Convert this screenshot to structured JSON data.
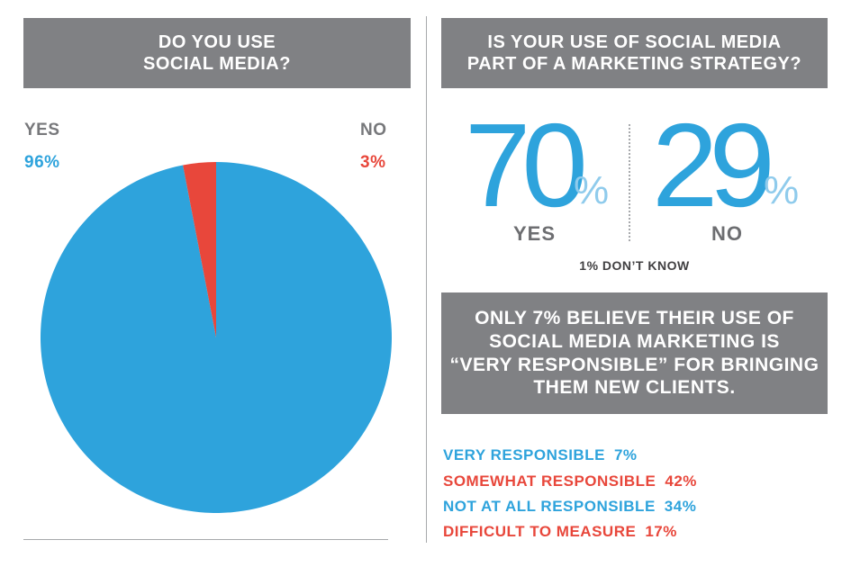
{
  "colors": {
    "yes": "#2ea3dc",
    "no": "#e8473b",
    "banner": "#808184",
    "light_blue": "#8fcbec"
  },
  "left_panel": {
    "question_lines": [
      "DO YOU USE",
      "SOCIAL MEDIA?"
    ],
    "yes_label": "YES",
    "yes_value": "96%",
    "no_label": "NO",
    "no_value": "3%"
  },
  "right_panel": {
    "question_lines": [
      "IS YOUR USE OF SOCIAL MEDIA",
      "PART OF A MARKETING STRATEGY?"
    ],
    "yes_number": "70",
    "no_number": "29",
    "percent_sign": "%",
    "yes_label": "YES",
    "no_label": "NO",
    "dont_know": "1% DON’T KNOW",
    "note_lines": [
      "ONLY 7% BELIEVE THEIR USE OF",
      "SOCIAL MEDIA MARKETING IS",
      "“VERY RESPONSIBLE” FOR BRINGING",
      "THEM NEW CLIENTS."
    ],
    "responsibility": [
      {
        "label": "VERY RESPONSIBLE",
        "value": "7%"
      },
      {
        "label": "SOMEWHAT RESPONSIBLE",
        "value": "42%"
      },
      {
        "label": "NOT AT ALL RESPONSIBLE",
        "value": "34%"
      },
      {
        "label": "DIFFICULT TO MEASURE",
        "value": "17%"
      }
    ]
  },
  "chart_data": [
    {
      "type": "pie",
      "categories": [
        "YES",
        "NO"
      ],
      "values": [
        96,
        3
      ],
      "colors": [
        "#2ea3dc",
        "#e8473b"
      ]
    },
    {
      "type": "table",
      "categories": [
        "YES",
        "NO",
        "DON’T KNOW"
      ],
      "values": [
        70,
        29,
        1
      ]
    },
    {
      "type": "table",
      "categories": [
        "VERY RESPONSIBLE",
        "SOMEWHAT RESPONSIBLE",
        "NOT AT ALL RESPONSIBLE",
        "DIFFICULT TO MEASURE"
      ],
      "values": [
        7,
        42,
        34,
        17
      ]
    }
  ]
}
